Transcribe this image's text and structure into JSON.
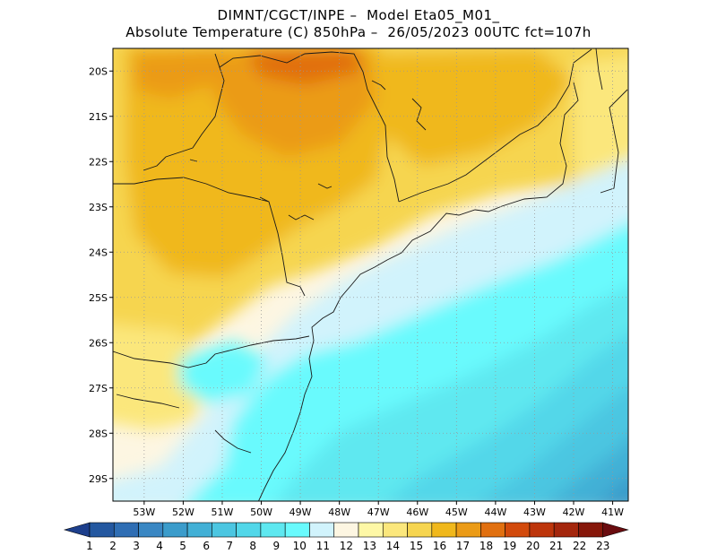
{
  "title": {
    "line1": "DIMNT/CGCT/INPE –  Model Eta05_M01_",
    "line2": "Absolute Temperature (C) 850hPa –  26/05/2023 00UTC fct=107h"
  },
  "map": {
    "lat_labels": [
      "20S",
      "21S",
      "22S",
      "23S",
      "24S",
      "25S",
      "26S",
      "27S",
      "28S",
      "29S"
    ],
    "lon_labels": [
      "53W",
      "52W",
      "51W",
      "50W",
      "49W",
      "48W",
      "47W",
      "46W",
      "45W",
      "44W",
      "43W",
      "42W",
      "41W"
    ],
    "lat_range": [
      -29.5,
      -19.5
    ],
    "lon_range": [
      -53.8,
      -40.6
    ],
    "grid": "dotted"
  },
  "colorbar": {
    "labels": [
      "1",
      "2",
      "3",
      "4",
      "5",
      "6",
      "7",
      "8",
      "9",
      "10",
      "11",
      "12",
      "13",
      "14",
      "15",
      "16",
      "17",
      "18",
      "19",
      "20",
      "21",
      "22",
      "23"
    ],
    "colors": [
      "#1d3f8c",
      "#2458a0",
      "#2f6eb4",
      "#3a87c3",
      "#3b9ccb",
      "#42b0d6",
      "#4cc6e1",
      "#52d7e9",
      "#5ee8f0",
      "#69fafd",
      "#d1f3fc",
      "#fdf6e2",
      "#fef8a6",
      "#fbe77c",
      "#f6d550",
      "#f0b81c",
      "#eb9b17",
      "#e17010",
      "#d24a0c",
      "#bd350b",
      "#a4260c",
      "#86170a",
      "#6a0c0f"
    ]
  }
}
